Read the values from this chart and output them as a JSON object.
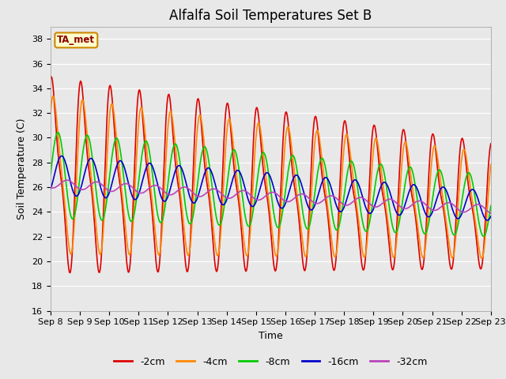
{
  "title": "Alfalfa Soil Temperatures Set B",
  "xlabel": "Time",
  "ylabel": "Soil Temperature (C)",
  "ylim": [
    16,
    39
  ],
  "yticks": [
    16,
    18,
    20,
    22,
    24,
    26,
    28,
    30,
    32,
    34,
    36,
    38
  ],
  "x_labels": [
    "Sep 8",
    "Sep 9",
    "Sep 10",
    "Sep 11",
    "Sep 12",
    "Sep 13",
    "Sep 14",
    "Sep 15",
    "Sep 16",
    "Sep 17",
    "Sep 18",
    "Sep 19",
    "Sep 20",
    "Sep 21",
    "Sep 22",
    "Sep 23"
  ],
  "series": [
    {
      "label": "-2cm",
      "color": "#dd0000",
      "lw": 1.2
    },
    {
      "label": "-4cm",
      "color": "#ff8800",
      "lw": 1.2
    },
    {
      "label": "-8cm",
      "color": "#00cc00",
      "lw": 1.2
    },
    {
      "label": "-16cm",
      "color": "#0000cc",
      "lw": 1.2
    },
    {
      "label": "-32cm",
      "color": "#bb44bb",
      "lw": 1.2
    }
  ],
  "annotation_text": "TA_met",
  "annotation_color": "#8b0000",
  "annotation_bg": "#ffffcc",
  "annotation_border": "#cc8800",
  "bg_color": "#e8e8e8",
  "title_fontsize": 12,
  "axis_label_fontsize": 9,
  "tick_fontsize": 8
}
